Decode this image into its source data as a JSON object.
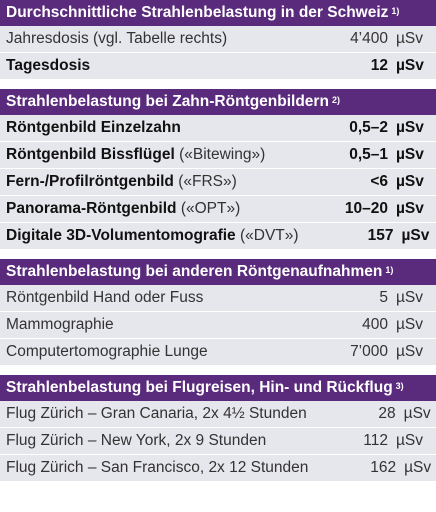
{
  "sections": [
    {
      "title": "Durchschnittliche Strahlenbelastung in der Schweiz",
      "footnote": "1)",
      "rows": [
        {
          "label": "Jahresdosis (vgl. Tabelle rechts)",
          "note": "",
          "value": "4’400",
          "unit": "µSv",
          "bold": false
        },
        {
          "label": "Tagesdosis",
          "note": "",
          "value": "12",
          "unit": "µSv",
          "bold": true
        }
      ]
    },
    {
      "title": "Strahlenbelastung bei Zahn-Röntgenbildern",
      "footnote": "2)",
      "rows": [
        {
          "label": "Röntgenbild Einzelzahn",
          "note": "",
          "value": "0,5–2",
          "unit": "µSv",
          "bold": true
        },
        {
          "label": "Röntgenbild Bissflügel",
          "note": "(«Bitewing»)",
          "value": "0,5–1",
          "unit": "µSv",
          "bold": true
        },
        {
          "label": "Fern-/Profilröntgenbild",
          "note": "(«FRS»)",
          "value": "<6",
          "unit": "µSv",
          "bold": true
        },
        {
          "label": "Panorama-Röntgenbild",
          "note": "(«OPT»)",
          "value": "10–20",
          "unit": "µSv",
          "bold": true
        },
        {
          "label": "Digitale 3D-Volumentomografie",
          "note": "(«DVT»)",
          "value": "157",
          "unit": "µSv",
          "bold": true
        }
      ]
    },
    {
      "title": "Strahlenbelastung bei anderen Röntgenaufnahmen",
      "footnote": "1)",
      "rows": [
        {
          "label": "Röntgenbild Hand oder Fuss",
          "note": "",
          "value": "5",
          "unit": "µSv",
          "bold": false
        },
        {
          "label": "Mammographie",
          "note": "",
          "value": "400",
          "unit": "µSv",
          "bold": false
        },
        {
          "label": "Computertomographie Lunge",
          "note": "",
          "value": "7’000",
          "unit": "µSv",
          "bold": false
        }
      ]
    },
    {
      "title": "Strahlenbelastung bei Flugreisen, Hin- und Rückflug",
      "footnote": "3)",
      "rows": [
        {
          "label": "Flug Zürich – Gran Canaria, 2x 4½ Stunden",
          "note": "",
          "value": "28",
          "unit": "µSv",
          "bold": false
        },
        {
          "label": "Flug Zürich – New York, 2x 9 Stunden",
          "note": "",
          "value": "112",
          "unit": "µSv",
          "bold": false
        },
        {
          "label": "Flug Zürich – San Francisco, 2x 12 Stunden",
          "note": "",
          "value": "162",
          "unit": "µSv",
          "bold": false
        }
      ]
    }
  ]
}
